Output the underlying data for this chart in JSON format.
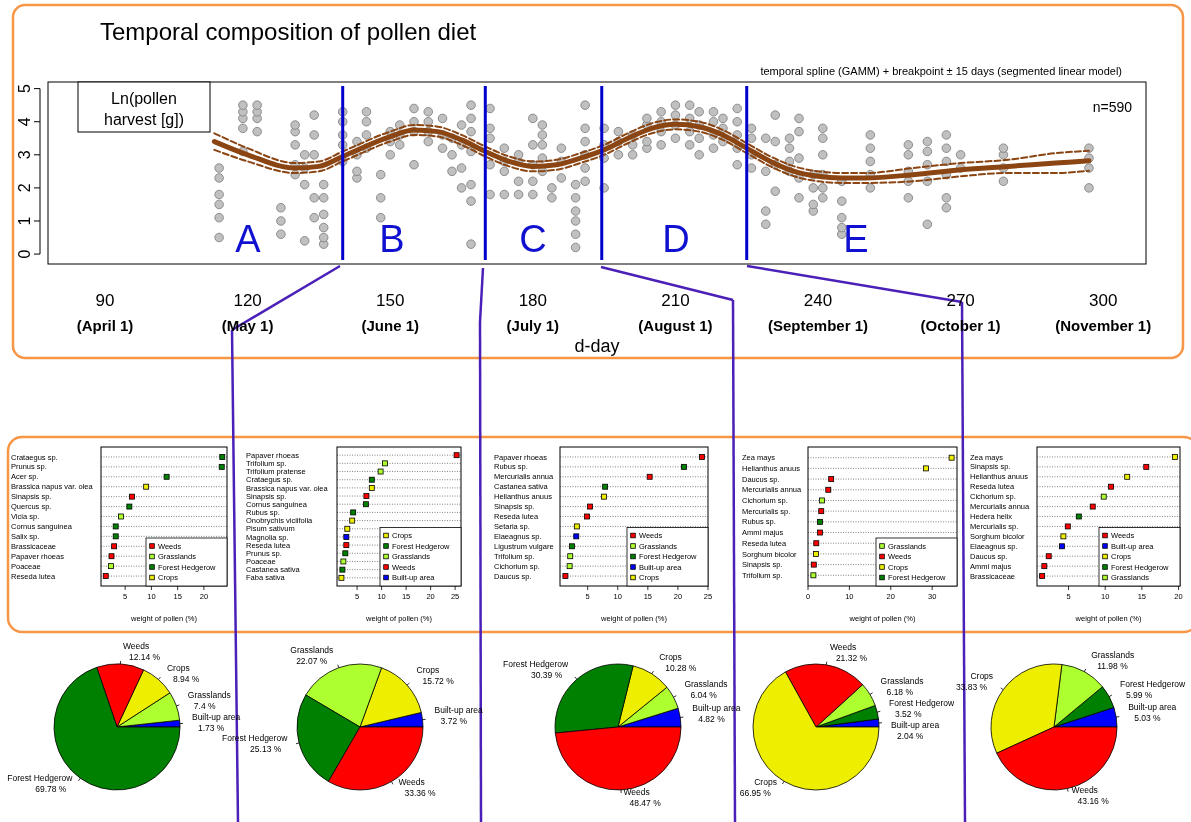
{
  "chart_data": [
    {
      "type": "scatter",
      "title": "Temporal composition of pollen diet",
      "subtitle": "temporal spline (GAMM) + breakpoint ± 15 days (segmented linear model)",
      "xlabel": "d-day",
      "ylabel": "Ln(pollen harvest [g])",
      "xlim": [
        78,
        309
      ],
      "ylim": [
        -0.3,
        5.2
      ],
      "xticks": [
        90,
        120,
        150,
        180,
        210,
        240,
        270,
        300
      ],
      "yticks": [
        0,
        1,
        2,
        3,
        4,
        5
      ],
      "series": [
        {
          "type": "scatter",
          "marker": "circle",
          "color": "#c0c0c0",
          "x": [
            114,
            114,
            114,
            114,
            114,
            114,
            119,
            119,
            119,
            119,
            119,
            122,
            122,
            122,
            122,
            127,
            127,
            127,
            130,
            130,
            130,
            130,
            130,
            132,
            132,
            132,
            132,
            134,
            134,
            134,
            134,
            134,
            136,
            136,
            136,
            136,
            136,
            136,
            140,
            140,
            140,
            140,
            140,
            143,
            143,
            143,
            143,
            145,
            145,
            145,
            145,
            148,
            148,
            148,
            150,
            150,
            150,
            152,
            152,
            152,
            155,
            155,
            155,
            155,
            158,
            158,
            158,
            158,
            161,
            161,
            161,
            163,
            163,
            163,
            165,
            165,
            165,
            165,
            167,
            167,
            167,
            167,
            167,
            167,
            167,
            171,
            171,
            171,
            171,
            171,
            174,
            174,
            174,
            174,
            177,
            177,
            177,
            177,
            180,
            180,
            180,
            180,
            180,
            182,
            182,
            182,
            182,
            182,
            184,
            184,
            186,
            186,
            186,
            189,
            189,
            189,
            189,
            189,
            189,
            191,
            191,
            191,
            191,
            191,
            191,
            195,
            195,
            195,
            195,
            198,
            198,
            198,
            201,
            201,
            201,
            204,
            204,
            204,
            204,
            207,
            207,
            207,
            207,
            210,
            210,
            210,
            210,
            213,
            213,
            213,
            213,
            215,
            215,
            215,
            215,
            218,
            218,
            218,
            218,
            220,
            220,
            220,
            223,
            223,
            223,
            223,
            223,
            226,
            226,
            226,
            226,
            229,
            229,
            229,
            229,
            231,
            231,
            231,
            231,
            234,
            234,
            234,
            234,
            236,
            236,
            236,
            236,
            236,
            239,
            239,
            239,
            239,
            241,
            241,
            241,
            241,
            241,
            241,
            245,
            245,
            245,
            245,
            245,
            251,
            251,
            251,
            251,
            251,
            259,
            259,
            259,
            259,
            259,
            263,
            263,
            263,
            263,
            263,
            267,
            267,
            267,
            267,
            267,
            267,
            270,
            270,
            279,
            279,
            279,
            279,
            297,
            297,
            297,
            297
          ],
          "values": [
            0.5,
            1.1,
            1.5,
            1.8,
            2.3,
            2.6,
            3.1,
            3.8,
            4.1,
            4.3,
            4.5,
            3.7,
            4.1,
            4.3,
            4.5,
            0.6,
            1.0,
            1.4,
            2.4,
            2.7,
            3.3,
            3.7,
            3.9,
            0.4,
            2.1,
            2.6,
            3.0,
            1.1,
            1.7,
            3.0,
            3.6,
            4.2,
            0.3,
            0.5,
            0.8,
            1.2,
            1.7,
            2.1,
            2.8,
            3.3,
            3.6,
            4.0,
            4.3,
            2.3,
            2.5,
            3.0,
            3.4,
            3.2,
            3.6,
            4.0,
            4.3,
            1.1,
            1.7,
            2.4,
            3.0,
            3.4,
            3.7,
            3.3,
            3.6,
            3.9,
            2.7,
            3.7,
            4.0,
            4.4,
            3.4,
            3.7,
            4.0,
            4.3,
            3.2,
            3.6,
            4.1,
            2.5,
            3.0,
            3.5,
            2.0,
            2.6,
            3.3,
            3.9,
            0.3,
            1.6,
            2.1,
            3.1,
            3.7,
            4.1,
            4.5,
            1.8,
            2.7,
            3.5,
            3.8,
            4.4,
            1.8,
            2.5,
            2.8,
            3.2,
            1.8,
            2.2,
            2.8,
            3.0,
            1.8,
            2.2,
            2.7,
            3.3,
            4.1,
            2.5,
            2.9,
            3.3,
            3.6,
            3.9,
            1.7,
            2.0,
            2.3,
            2.8,
            3.2,
            0.2,
            0.6,
            1.0,
            1.3,
            1.7,
            2.1,
            2.2,
            2.6,
            3.0,
            3.4,
            3.8,
            4.5,
            2.0,
            2.9,
            3.3,
            3.8,
            3.0,
            3.4,
            3.7,
            3.0,
            3.3,
            3.6,
            3.2,
            3.4,
            3.9,
            4.1,
            3.3,
            3.7,
            4.0,
            4.3,
            3.5,
            3.9,
            4.2,
            4.5,
            3.3,
            3.7,
            4.1,
            4.5,
            3.0,
            3.5,
            3.9,
            4.3,
            3.2,
            3.6,
            4.0,
            4.3,
            3.4,
            3.8,
            4.1,
            2.7,
            3.2,
            3.6,
            4.0,
            4.4,
            2.6,
            3.0,
            3.5,
            3.8,
            0.9,
            1.3,
            2.5,
            3.5,
            1.9,
            2.7,
            3.4,
            4.2,
            2.5,
            2.8,
            3.2,
            3.5,
            1.7,
            2.3,
            2.9,
            3.7,
            4.1,
            1.3,
            1.5,
            2.0,
            2.4,
            1.7,
            2.0,
            2.4,
            3.0,
            3.5,
            3.8,
            0.6,
            0.8,
            1.1,
            1.6,
            2.2,
            2.0,
            2.4,
            2.8,
            3.2,
            3.6,
            1.7,
            2.2,
            2.5,
            3.0,
            3.3,
            0.9,
            2.2,
            2.7,
            3.1,
            3.4,
            1.4,
            1.7,
            2.4,
            2.8,
            3.2,
            3.6,
            2.6,
            3.0,
            2.2,
            2.6,
            3.0,
            3.2,
            2.0,
            2.6,
            2.9,
            3.2
          ]
        },
        {
          "type": "line",
          "marker": "none",
          "line_style": "solid",
          "color": "#8b4513",
          "x": [
            113,
            120,
            130,
            135,
            140,
            150,
            155,
            160,
            165,
            170,
            175,
            180,
            185,
            190,
            195,
            200,
            205,
            210,
            215,
            220,
            225,
            230,
            235,
            240,
            245,
            250,
            260,
            270,
            280,
            290,
            297
          ],
          "values": [
            3.4,
            3.0,
            2.6,
            2.65,
            2.95,
            3.55,
            3.75,
            3.7,
            3.45,
            3.1,
            2.8,
            2.65,
            2.7,
            2.9,
            3.15,
            3.5,
            3.8,
            3.92,
            3.85,
            3.6,
            3.2,
            2.8,
            2.5,
            2.35,
            2.3,
            2.3,
            2.4,
            2.55,
            2.65,
            2.75,
            2.82
          ]
        },
        {
          "type": "line",
          "marker": "none",
          "line_style": "dashed",
          "color": "#8b4513",
          "x": [
            113,
            120,
            130,
            135,
            140,
            150,
            155,
            160,
            165,
            170,
            175,
            180,
            185,
            190,
            195,
            200,
            205,
            210,
            215,
            220,
            225,
            230,
            235,
            240,
            245,
            250,
            260,
            270,
            280,
            290,
            297
          ],
          "values": [
            3.15,
            2.8,
            2.45,
            2.5,
            2.8,
            3.4,
            3.6,
            3.55,
            3.3,
            2.95,
            2.65,
            2.5,
            2.55,
            2.75,
            3.0,
            3.35,
            3.65,
            3.77,
            3.7,
            3.45,
            3.05,
            2.65,
            2.35,
            2.2,
            2.15,
            2.15,
            2.2,
            2.35,
            2.45,
            2.45,
            2.52
          ]
        },
        {
          "type": "line",
          "marker": "none",
          "line_style": "dashed",
          "color": "#8b4513",
          "x": [
            113,
            120,
            130,
            135,
            140,
            150,
            155,
            160,
            165,
            170,
            175,
            180,
            185,
            190,
            195,
            200,
            205,
            210,
            215,
            220,
            225,
            230,
            235,
            240,
            245,
            250,
            260,
            270,
            280,
            290,
            297
          ],
          "values": [
            3.65,
            3.2,
            2.75,
            2.8,
            3.1,
            3.7,
            3.9,
            3.85,
            3.6,
            3.25,
            2.95,
            2.8,
            2.85,
            3.05,
            3.3,
            3.65,
            3.95,
            4.07,
            4.0,
            3.75,
            3.35,
            2.95,
            2.65,
            2.5,
            2.45,
            2.45,
            2.6,
            2.75,
            2.85,
            3.05,
            3.12
          ]
        }
      ],
      "ref_lines": [
        {
          "axis": "x",
          "value": 140,
          "color": "#0000cd"
        },
        {
          "axis": "x",
          "value": 170,
          "color": "#0000cd"
        },
        {
          "axis": "x",
          "value": 194.5,
          "color": "#0000cd"
        },
        {
          "axis": "x",
          "value": 225,
          "color": "#0000cd"
        }
      ],
      "annotations": [
        "(April 1)",
        "(May 1)",
        "(June 1)",
        "(July 1)",
        "(August 1)",
        "(September 1)",
        "(October 1)",
        "(November 1)",
        "A",
        "B",
        "C",
        "D",
        "E",
        "n=590"
      ]
    },
    {
      "type": "scatter",
      "orientation": "horizontal",
      "xlabel": "weight of pollen (%)",
      "xlim": [
        0.4,
        24.4
      ],
      "xticks": [
        5,
        10,
        15,
        20
      ],
      "marker": "square",
      "grid": "y",
      "legend": "bottom right",
      "categories": [
        "Crataegus sp.",
        "Prunus sp.",
        "Acer sp.",
        "Brassica napus var. olea",
        "Sinapsis sp.",
        "Quercus sp.",
        "Vicia sp.",
        "Cornus sanguinea",
        "Salix sp.",
        "Brassicaceae",
        "Papaver rhoeas",
        "Poaceae",
        "Reseda lutea"
      ],
      "series": [
        {
          "name": "Weeds",
          "color": "#ff0000",
          "values": [
            null,
            null,
            null,
            null,
            6.3,
            null,
            null,
            null,
            null,
            2.9,
            2.4,
            null,
            1.3
          ]
        },
        {
          "name": "Grasslands",
          "color": "#adff2f",
          "values": [
            null,
            null,
            null,
            null,
            null,
            null,
            4.2,
            null,
            null,
            null,
            null,
            2.3,
            null
          ]
        },
        {
          "name": "Forest Hedgerow",
          "color": "#008000",
          "values": [
            23.5,
            23.4,
            12.9,
            null,
            null,
            5.8,
            null,
            3.2,
            3.2,
            null,
            null,
            null,
            null
          ]
        },
        {
          "name": "Crops",
          "color": "#eeee00",
          "values": [
            null,
            null,
            null,
            9.0,
            null,
            null,
            null,
            null,
            null,
            null,
            null,
            null,
            null
          ]
        }
      ]
    },
    {
      "type": "scatter",
      "orientation": "horizontal",
      "xlabel": "weight of pollen (%)",
      "xlim": [
        0.9,
        26.2
      ],
      "xticks": [
        5,
        10,
        15,
        20,
        25
      ],
      "marker": "square",
      "grid": "y",
      "legend": "bottom right",
      "categories": [
        "Papaver rhoeas",
        "Trifolium sp.",
        "Trifolium pratense",
        "Crataegus sp.",
        "Brassica napus var. olea",
        "Sinapsis sp.",
        "Cornus sanguinea",
        "Rubus sp.",
        "Onobrychis viciifolia",
        "Pisum sativum",
        "Magnolia sp.",
        "Reseda lutea",
        "Prunus sp.",
        "Poaceae",
        "Castanea sativa",
        "Faba sativa"
      ],
      "series": [
        {
          "name": "Crops",
          "color": "#eeee00",
          "values": [
            null,
            null,
            null,
            null,
            8.0,
            null,
            null,
            null,
            4.0,
            3.0,
            null,
            null,
            null,
            null,
            null,
            1.8
          ]
        },
        {
          "name": "Forest Hedgerow",
          "color": "#008000",
          "values": [
            null,
            null,
            null,
            8.0,
            null,
            null,
            6.8,
            4.2,
            null,
            null,
            null,
            null,
            2.6,
            null,
            2.0,
            null
          ]
        },
        {
          "name": "Grasslands",
          "color": "#adff2f",
          "values": [
            null,
            10.7,
            9.8,
            null,
            null,
            null,
            null,
            null,
            null,
            null,
            null,
            null,
            null,
            2.2,
            null,
            null
          ]
        },
        {
          "name": "Weeds",
          "color": "#ff0000",
          "values": [
            25.3,
            null,
            null,
            null,
            null,
            6.9,
            null,
            null,
            null,
            null,
            null,
            2.8,
            null,
            null,
            null,
            null
          ]
        },
        {
          "name": "Built-up area",
          "color": "#0000ff",
          "values": [
            null,
            null,
            null,
            null,
            null,
            null,
            null,
            null,
            null,
            null,
            2.8,
            null,
            null,
            null,
            null,
            null
          ]
        }
      ]
    },
    {
      "type": "scatter",
      "orientation": "horizontal",
      "xlabel": "weight of pollen (%)",
      "xlim": [
        0.4,
        25.0
      ],
      "xticks": [
        5,
        10,
        15,
        20,
        25
      ],
      "marker": "square",
      "grid": "y",
      "legend": "bottom right",
      "categories": [
        "Papaver rhoeas",
        "Rubus sp.",
        "Mercurialis annua",
        "Castanea sativa",
        "Helianthus anuus",
        "Sinapsis sp.",
        "Reseda lutea",
        "Setaria sp.",
        "Elaeagnus sp.",
        "Ligustrum vulgare",
        "Trifolium sp.",
        "Cichorium sp.",
        "Daucus sp."
      ],
      "series": [
        {
          "name": "Weeds",
          "color": "#ff0000",
          "values": [
            24.0,
            null,
            15.3,
            null,
            null,
            5.4,
            4.9,
            null,
            null,
            null,
            null,
            null,
            1.3
          ]
        },
        {
          "name": "Grasslands",
          "color": "#adff2f",
          "values": [
            null,
            null,
            null,
            null,
            null,
            null,
            null,
            null,
            null,
            null,
            2.1,
            2.0,
            null
          ]
        },
        {
          "name": "Forest Hedgerow",
          "color": "#008000",
          "values": [
            null,
            21.0,
            null,
            7.9,
            null,
            null,
            null,
            null,
            null,
            2.4,
            null,
            null,
            null
          ]
        },
        {
          "name": "Built-up area",
          "color": "#0000ff",
          "values": [
            null,
            null,
            null,
            null,
            null,
            null,
            null,
            null,
            3.1,
            null,
            null,
            null,
            null
          ]
        },
        {
          "name": "Crops",
          "color": "#eeee00",
          "values": [
            null,
            null,
            null,
            null,
            7.7,
            null,
            null,
            3.2,
            null,
            null,
            null,
            null,
            null
          ]
        }
      ]
    },
    {
      "type": "scatter",
      "orientation": "horizontal",
      "xlabel": "weight of pollen (%)",
      "xlim": [
        0,
        36
      ],
      "xticks": [
        0,
        10,
        20,
        30
      ],
      "marker": "square",
      "grid": "y",
      "legend": "bottom right",
      "categories": [
        "Zea mays",
        "Helianthus anuus",
        "Daucus sp.",
        "Mercurialis annua",
        "Cichorium sp.",
        "Mercurialis sp.",
        "Rubus sp.",
        "Ammi majus",
        "Reseda lutea",
        "Sorghum bicolor",
        "Sinapsis sp.",
        "Trifolium sp."
      ],
      "series": [
        {
          "name": "Grasslands",
          "color": "#adff2f",
          "values": [
            null,
            null,
            null,
            null,
            3.4,
            null,
            null,
            null,
            null,
            null,
            null,
            1.3
          ]
        },
        {
          "name": "Weeds",
          "color": "#ff0000",
          "values": [
            null,
            null,
            5.6,
            4.9,
            null,
            3.2,
            null,
            2.9,
            2.0,
            null,
            1.4,
            null
          ]
        },
        {
          "name": "Crops",
          "color": "#eeee00",
          "values": [
            34.7,
            28.5,
            null,
            null,
            null,
            null,
            null,
            null,
            null,
            1.9,
            null,
            null
          ]
        },
        {
          "name": "Forest Hedgerow",
          "color": "#008000",
          "values": [
            null,
            null,
            null,
            null,
            null,
            null,
            2.9,
            null,
            null,
            null,
            null,
            null
          ]
        }
      ]
    },
    {
      "type": "scatter",
      "orientation": "horizontal",
      "xlabel": "weight of pollen (%)",
      "xlim": [
        0.7,
        20.2
      ],
      "xticks": [
        5,
        10,
        15,
        20
      ],
      "marker": "square",
      "grid": "y",
      "legend": "bottom right",
      "categories": [
        "Zea mays",
        "Sinapsis sp.",
        "Helianthus anuus",
        "Reseda lutea",
        "Cichorium sp.",
        "Mercurialis annua",
        "Hedera helix",
        "Mercurialis sp.",
        "Sorghum bicolor",
        "Elaeagnus sp.",
        "Daucus sp.",
        "Ammi majus",
        "Brassicaceae"
      ],
      "series": [
        {
          "name": "Weeds",
          "color": "#ff0000",
          "values": [
            null,
            15.6,
            null,
            10.8,
            null,
            8.3,
            null,
            4.9,
            null,
            null,
            2.3,
            1.7,
            1.4
          ]
        },
        {
          "name": "Built-up area",
          "color": "#0000ff",
          "values": [
            null,
            null,
            null,
            null,
            null,
            null,
            null,
            null,
            null,
            4.1,
            null,
            null,
            null
          ]
        },
        {
          "name": "Crops",
          "color": "#eeee00",
          "values": [
            19.5,
            null,
            13.0,
            null,
            null,
            null,
            null,
            null,
            4.3,
            null,
            null,
            null,
            null
          ]
        },
        {
          "name": "Forest Hedgerow",
          "color": "#008000",
          "values": [
            null,
            null,
            null,
            null,
            null,
            null,
            6.4,
            null,
            null,
            null,
            null,
            null,
            null
          ]
        },
        {
          "name": "Grasslands",
          "color": "#adff2f",
          "values": [
            null,
            null,
            null,
            null,
            9.8,
            null,
            null,
            null,
            null,
            null,
            null,
            null,
            null
          ]
        }
      ]
    },
    {
      "type": "pie",
      "categories": [
        "Built-up area",
        "Grasslands",
        "Crops",
        "Weeds",
        "Forest Hedgerow"
      ],
      "values": [
        1.73,
        7.4,
        8.94,
        12.14,
        69.78
      ],
      "colors": [
        "#0000ff",
        "#adff2f",
        "#eeee00",
        "#ff0000",
        "#008000"
      ],
      "value_labels": [
        "1.73 %",
        "7.4 %",
        "8.94 %",
        "12.14 %",
        "69.78 %"
      ]
    },
    {
      "type": "pie",
      "categories": [
        "Built-up area",
        "Crops",
        "Grasslands",
        "Forest Hedgerow",
        "Weeds"
      ],
      "values": [
        3.72,
        15.72,
        22.07,
        25.13,
        33.36
      ],
      "colors": [
        "#0000ff",
        "#eeee00",
        "#adff2f",
        "#008000",
        "#ff0000"
      ],
      "value_labels": [
        "3.72 %",
        "15.72 %",
        "22.07 %",
        "25.13 %",
        "33.36 %"
      ]
    },
    {
      "type": "pie",
      "categories": [
        "Built-up area",
        "Grasslands",
        "Crops",
        "Forest Hedgerow",
        "Weeds"
      ],
      "values": [
        4.82,
        6.04,
        10.28,
        30.39,
        48.47
      ],
      "colors": [
        "#0000ff",
        "#adff2f",
        "#eeee00",
        "#008000",
        "#ff0000"
      ],
      "value_labels": [
        "4.82 %",
        "6.04 %",
        "10.28 %",
        "30.39 %",
        "48.47 %"
      ]
    },
    {
      "type": "pie",
      "categories": [
        "Built-up area",
        "Forest Hedgerow",
        "Grasslands",
        "Weeds",
        "Crops"
      ],
      "values": [
        2.04,
        3.52,
        6.18,
        21.32,
        66.95
      ],
      "colors": [
        "#0000ff",
        "#008000",
        "#adff2f",
        "#ff0000",
        "#eeee00"
      ],
      "value_labels": [
        "2.04 %",
        "3.52 %",
        "6.18 %",
        "21.32 %",
        "66.95 %"
      ]
    },
    {
      "type": "pie",
      "categories": [
        "Built-up area",
        "Forest Hedgerow",
        "Grasslands",
        "Crops",
        "Weeds"
      ],
      "values": [
        5.03,
        5.99,
        11.98,
        33.83,
        43.16
      ],
      "colors": [
        "#0000ff",
        "#008000",
        "#adff2f",
        "#eeee00",
        "#ff0000"
      ],
      "value_labels": [
        "5.03 %",
        "5.99 %",
        "11.98 %",
        "33.83 %",
        "43.16 %"
      ]
    }
  ]
}
